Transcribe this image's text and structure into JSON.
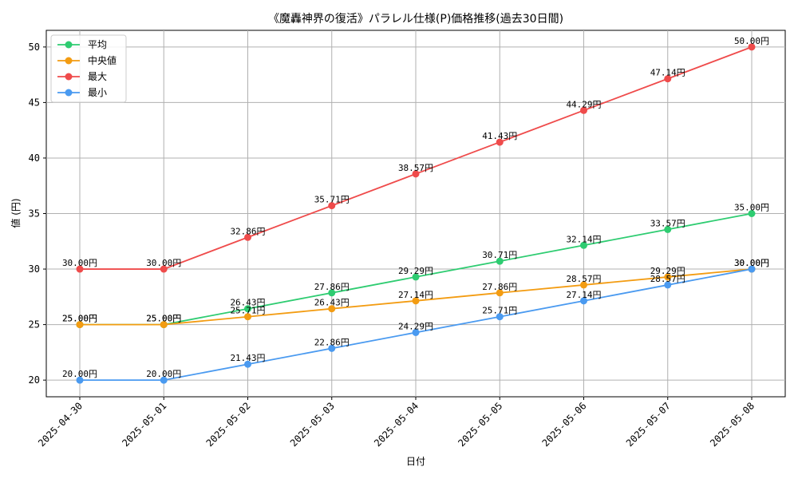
{
  "chart_data": {
    "type": "line",
    "title": "《魔轟神界の復活》パラレル仕様(P)価格推移(過去30日間)",
    "xlabel": "日付",
    "ylabel": "値 (円)",
    "categories": [
      "2025-04-30",
      "2025-05-01",
      "2025-05-02",
      "2025-05-03",
      "2025-05-04",
      "2025-05-05",
      "2025-05-06",
      "2025-05-07",
      "2025-05-08"
    ],
    "ylim": [
      18.5,
      51.5
    ],
    "yticks": [
      20,
      25,
      30,
      35,
      40,
      45,
      50
    ],
    "grid": true,
    "legend_position": "top-left",
    "value_suffix": "円",
    "series": [
      {
        "name": "平均",
        "color": "#2ecc71",
        "values": [
          25.0,
          25.0,
          26.43,
          27.86,
          29.29,
          30.71,
          32.14,
          33.57,
          35.0
        ]
      },
      {
        "name": "中央値",
        "color": "#f39c12",
        "values": [
          25.0,
          25.0,
          25.71,
          26.43,
          27.14,
          27.86,
          28.57,
          29.29,
          30.0
        ]
      },
      {
        "name": "最大",
        "color": "#ef4b4b",
        "values": [
          30.0,
          30.0,
          32.86,
          35.71,
          38.57,
          41.43,
          44.29,
          47.14,
          50.0
        ]
      },
      {
        "name": "最小",
        "color": "#4a9af0",
        "values": [
          20.0,
          20.0,
          21.43,
          22.86,
          24.29,
          25.71,
          27.14,
          28.57,
          30.0
        ]
      }
    ]
  }
}
